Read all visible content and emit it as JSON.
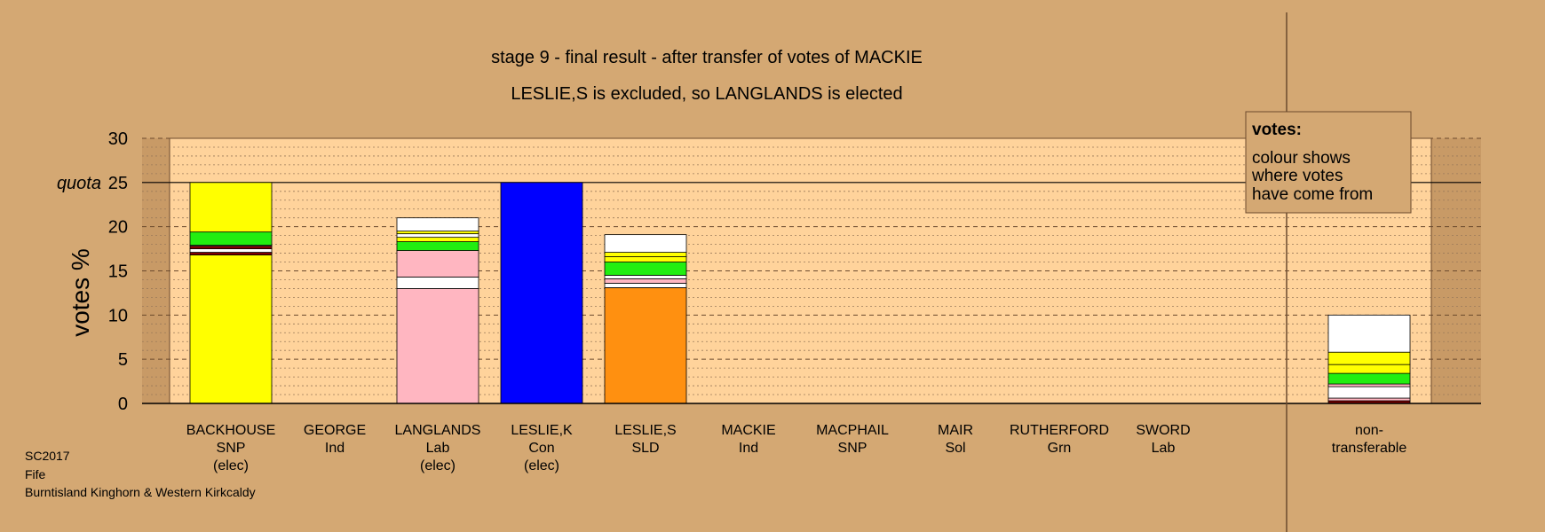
{
  "chart_data": {
    "type": "bar",
    "stacked": true,
    "title": "stage 9 - final result - after transfer of votes of MACKIE",
    "subtitle": "LESLIE,S is excluded, so LANGLANDS is elected",
    "ylabel": "votes %",
    "ylim": [
      0,
      30
    ],
    "yticks": [
      0,
      5,
      10,
      15,
      20,
      25,
      30
    ],
    "quota": {
      "label": "quota",
      "value": 25
    },
    "grid": true,
    "legend": {
      "title": "votes:",
      "lines": [
        "colour shows",
        "where votes",
        "have come from"
      ],
      "placement": "top-right"
    },
    "categories": [
      {
        "name": "BACKHOUSE",
        "party": "SNP",
        "status": "(elec)"
      },
      {
        "name": "GEORGE",
        "party": "Ind",
        "status": ""
      },
      {
        "name": "LANGLANDS",
        "party": "Lab",
        "status": "(elec)"
      },
      {
        "name": "LESLIE,K",
        "party": "Con",
        "status": "(elec)"
      },
      {
        "name": "LESLIE,S",
        "party": "SLD",
        "status": ""
      },
      {
        "name": "MACKIE",
        "party": "Ind",
        "status": ""
      },
      {
        "name": "MACPHAIL",
        "party": "SNP",
        "status": ""
      },
      {
        "name": "MAIR",
        "party": "Sol",
        "status": ""
      },
      {
        "name": "RUTHERFORD",
        "party": "Grn",
        "status": ""
      },
      {
        "name": "SWORD",
        "party": "Lab",
        "status": ""
      },
      {
        "name": "non-",
        "party": "transferable",
        "status": ""
      }
    ],
    "segments": [
      [
        {
          "color": "#ffff00",
          "value": 16.8
        },
        {
          "color": "#800000",
          "value": 0.3
        },
        {
          "color": "#ffffff",
          "value": 0.4
        },
        {
          "color": "#800000",
          "value": 0.3
        },
        {
          "color": "#ffb6c1",
          "value": 0.1
        },
        {
          "color": "#22ee11",
          "value": 1.5
        },
        {
          "color": "#ffff00",
          "value": 5.6
        }
      ],
      [],
      [
        {
          "color": "#ffb6c1",
          "value": 13.0
        },
        {
          "color": "#ffffff",
          "value": 1.3
        },
        {
          "color": "#ffb6c1",
          "value": 3.0
        },
        {
          "color": "#22ee11",
          "value": 1.0
        },
        {
          "color": "#ffff00",
          "value": 0.5
        },
        {
          "color": "#ffffff",
          "value": 0.4
        },
        {
          "color": "#ffff00",
          "value": 0.3
        },
        {
          "color": "#ffffff",
          "value": 1.5
        }
      ],
      [
        {
          "color": "#0000ff",
          "value": 25.0
        }
      ],
      [
        {
          "color": "#ff9010",
          "value": 13.1
        },
        {
          "color": "#ffffff",
          "value": 0.5
        },
        {
          "color": "#ffb6c1",
          "value": 0.5
        },
        {
          "color": "#ffffff",
          "value": 0.4
        },
        {
          "color": "#22ee11",
          "value": 1.5
        },
        {
          "color": "#ffff00",
          "value": 0.6
        },
        {
          "color": "#ffff00",
          "value": 0.5
        },
        {
          "color": "#ffffff",
          "value": 2.0
        }
      ],
      [],
      [],
      [],
      [],
      [],
      [
        {
          "color": "#800000",
          "value": 0.3
        },
        {
          "color": "#ffb6c1",
          "value": 0.3
        },
        {
          "color": "#ffffff",
          "value": 1.3
        },
        {
          "color": "#ffb6c1",
          "value": 0.3
        },
        {
          "color": "#22ee11",
          "value": 1.2
        },
        {
          "color": "#ffff00",
          "value": 1.0
        },
        {
          "color": "#ffff00",
          "value": 1.4
        },
        {
          "color": "#ffffff",
          "value": 4.2
        }
      ]
    ]
  },
  "footer": [
    "SC2017",
    "Fife",
    "Burntisland Kinghorn & Western Kirkcaldy"
  ],
  "colors": {
    "background": "#d4a873",
    "plot_area": "#ffd39b",
    "quota_line": "#000000"
  }
}
